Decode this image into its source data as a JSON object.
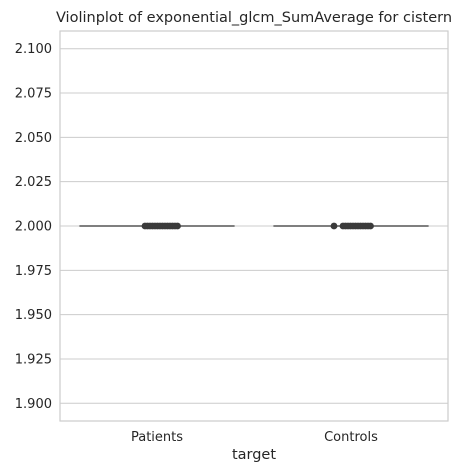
{
  "chart_data": {
    "type": "violin",
    "title": "Violinplot of exponential_glcm_SumAverage for cistern",
    "xlabel": "target",
    "ylabel": "",
    "categories": [
      "Patients",
      "Controls"
    ],
    "ylim": [
      1.89,
      2.11
    ],
    "yticks": [
      1.9,
      1.925,
      1.95,
      1.975,
      2.0,
      2.025,
      2.05,
      2.075,
      2.1
    ],
    "ytick_labels": [
      "1.900",
      "1.925",
      "1.950",
      "1.975",
      "2.000",
      "2.025",
      "2.050",
      "2.075",
      "2.100"
    ],
    "grid": "horizontal",
    "series": [
      {
        "category": "Patients",
        "value": 2.0
      },
      {
        "category": "Controls",
        "value": 2.0
      }
    ],
    "colors": {
      "grid": "#cccccc",
      "spine": "#cccccc",
      "violin_line": "#555555",
      "inner_points": "#3a3a3a"
    }
  }
}
